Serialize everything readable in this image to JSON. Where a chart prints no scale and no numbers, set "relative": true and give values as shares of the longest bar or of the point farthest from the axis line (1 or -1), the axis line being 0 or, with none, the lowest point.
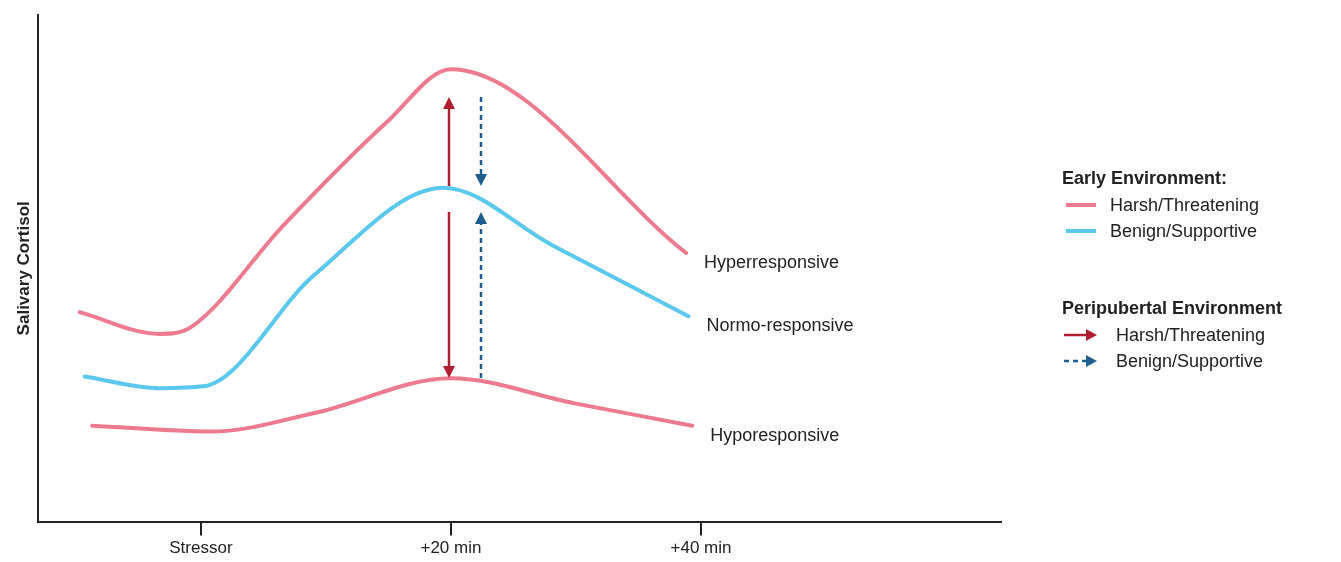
{
  "chart_data": {
    "type": "line",
    "relative": true,
    "ylabel": "Salivary Cortisol",
    "legend_title": "Early Environment:",
    "legend": "right",
    "marker": "none",
    "line_style": "solid",
    "grid": false,
    "xlim": [
      -13,
      64
    ],
    "xticks": [
      {
        "value": 0,
        "label": "Stressor"
      },
      {
        "value": 20,
        "label": "+20 min"
      },
      {
        "value": 40,
        "label": "+40 min"
      }
    ],
    "series": [
      {
        "name": "Harsh/Threatening",
        "color": "#ee7a8f",
        "x": [
          -9.7,
          -3.3,
          -0.8,
          6.6,
          14.9,
          20,
          38.8
        ],
        "values": [
          0.463,
          0.415,
          0.43,
          0.655,
          0.884,
          1.0,
          0.594
        ]
      },
      {
        "name": "Benign/Supportive",
        "color": "#5bc8ee",
        "x": [
          -9.3,
          -3.3,
          0.2,
          9.1,
          19.4,
          28.1,
          39
        ],
        "values": [
          0.321,
          0.295,
          0.299,
          0.546,
          0.738,
          0.611,
          0.454
        ]
      },
      {
        "color": "#ee7a8f",
        "x": [
          -8.7,
          0.8,
          9.1,
          20,
          29.8,
          39.3
        ],
        "values": [
          0.212,
          0.199,
          0.24,
          0.317,
          0.262,
          0.212
        ]
      }
    ],
    "annotations": [
      {
        "text": "Hyperresponsive",
        "x": 38.8,
        "y": 0.594
      },
      {
        "text": "Normo-responsive",
        "x": 39,
        "y": 0.454
      },
      {
        "text": "Hyporesponsive",
        "x": 39.3,
        "y": 0.212
      },
      "Peripubertal Environment",
      "Harsh/Threatening",
      "Benign/Supportive"
    ]
  }
}
